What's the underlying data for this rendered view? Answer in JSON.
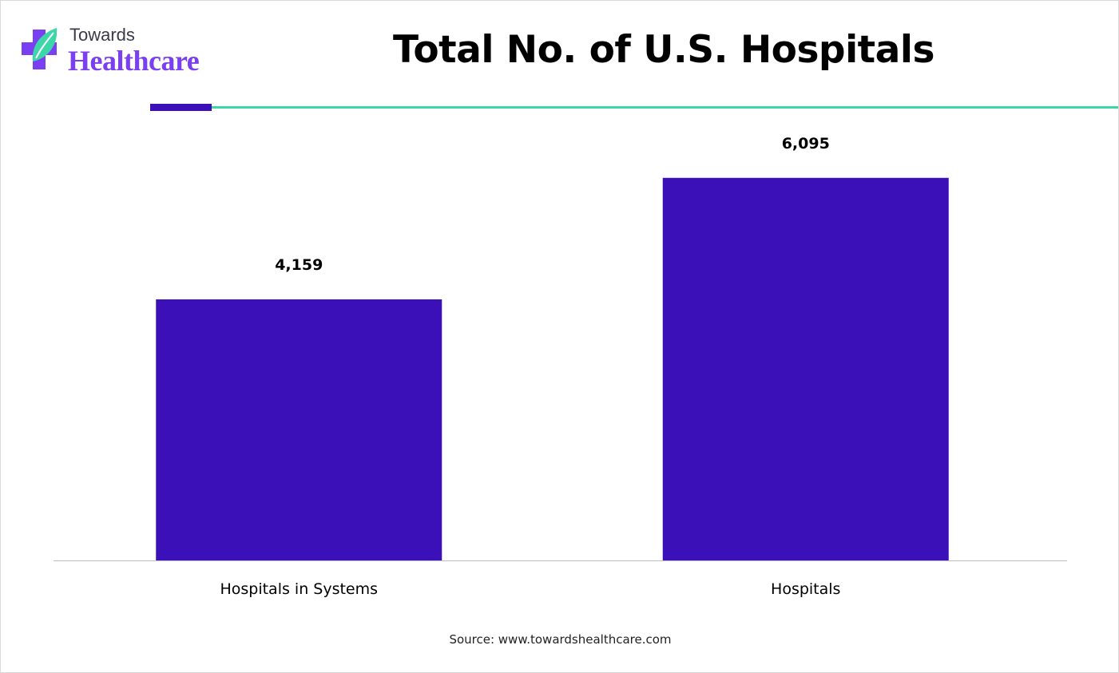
{
  "brand": {
    "line1": "Towards",
    "line2": "Healthcare",
    "logo_icon": "medical-cross-leaf-icon",
    "colors": {
      "cross": "#7a3ff0",
      "leaf": "#3cd6a8",
      "text_dark": "#3a3a4a"
    }
  },
  "header": {
    "title": "Total No. of U.S. Hospitals"
  },
  "accent": {
    "dark": "#3c10b8",
    "teal": "#3cd6a8"
  },
  "chart_data": {
    "type": "bar",
    "categories": [
      "Hospitals in Systems",
      "Hospitals"
    ],
    "values": [
      4159,
      6095
    ],
    "value_labels": [
      "4,159",
      "6,095"
    ],
    "title": "Total No. of U.S. Hospitals",
    "xlabel": "",
    "ylabel": "",
    "ylim": [
      0,
      8000
    ],
    "grid": false,
    "legend": "none",
    "bar_color": "#3c10b8"
  },
  "footer": {
    "source": "Source: www.towardshealthcare.com"
  }
}
